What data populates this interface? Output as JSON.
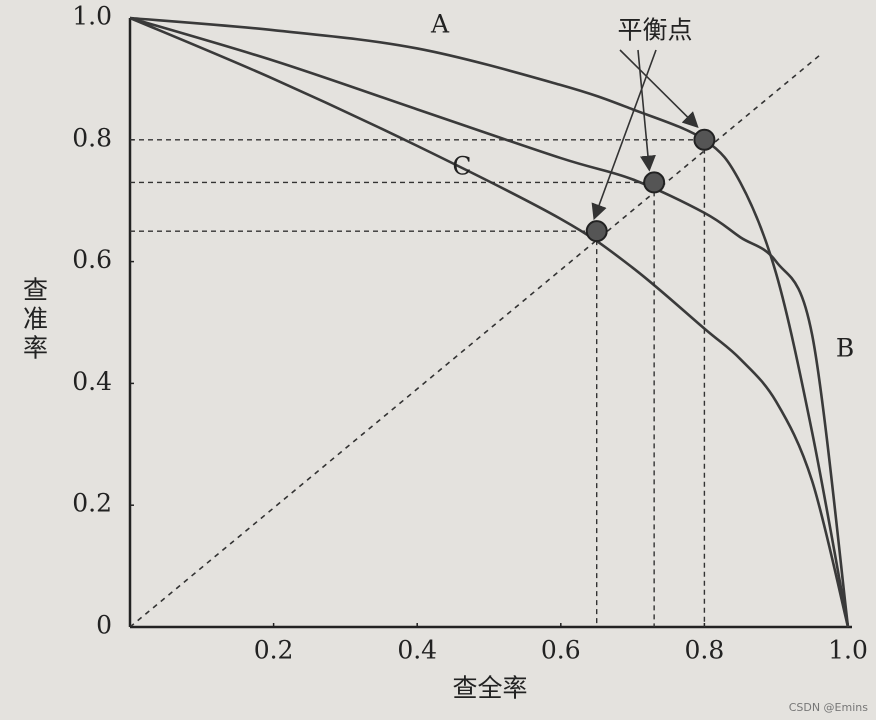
{
  "chart_data": {
    "type": "line",
    "x": [
      0,
      0.2,
      0.4,
      0.6,
      0.7,
      0.8,
      0.85,
      0.9,
      0.95,
      1.0
    ],
    "series": [
      {
        "name": "A",
        "color": "#3a3a3a",
        "values": [
          1,
          0.98,
          0.95,
          0.89,
          0.85,
          0.8,
          0.73,
          0.58,
          0.32,
          0
        ]
      },
      {
        "name": "B",
        "color": "#3a3a3a",
        "values": [
          1,
          0.93,
          0.85,
          0.77,
          0.735,
          0.68,
          0.64,
          0.6,
          0.48,
          0
        ]
      },
      {
        "name": "C",
        "color": "#3a3a3a",
        "values": [
          1,
          0.9,
          0.79,
          0.67,
          0.59,
          0.49,
          0.44,
          0.37,
          0.24,
          0
        ]
      }
    ],
    "balance_points": {
      "label": "平衡点",
      "x": [
        0.8,
        0.73,
        0.65
      ],
      "values": [
        0.8,
        0.73,
        0.65
      ]
    },
    "xlabel": "查全率",
    "ylabel": "查准率",
    "xlim": [
      0,
      1
    ],
    "ylim": [
      0,
      1
    ],
    "xticks": [
      0.2,
      0.4,
      0.6,
      0.8,
      {
        "value": 1,
        "label": "1.0"
      }
    ],
    "yticks": [
      0,
      0.2,
      0.4,
      0.6,
      0.8,
      {
        "value": 1,
        "label": "1.0"
      }
    ],
    "watermark": "CSDN @Emins"
  }
}
